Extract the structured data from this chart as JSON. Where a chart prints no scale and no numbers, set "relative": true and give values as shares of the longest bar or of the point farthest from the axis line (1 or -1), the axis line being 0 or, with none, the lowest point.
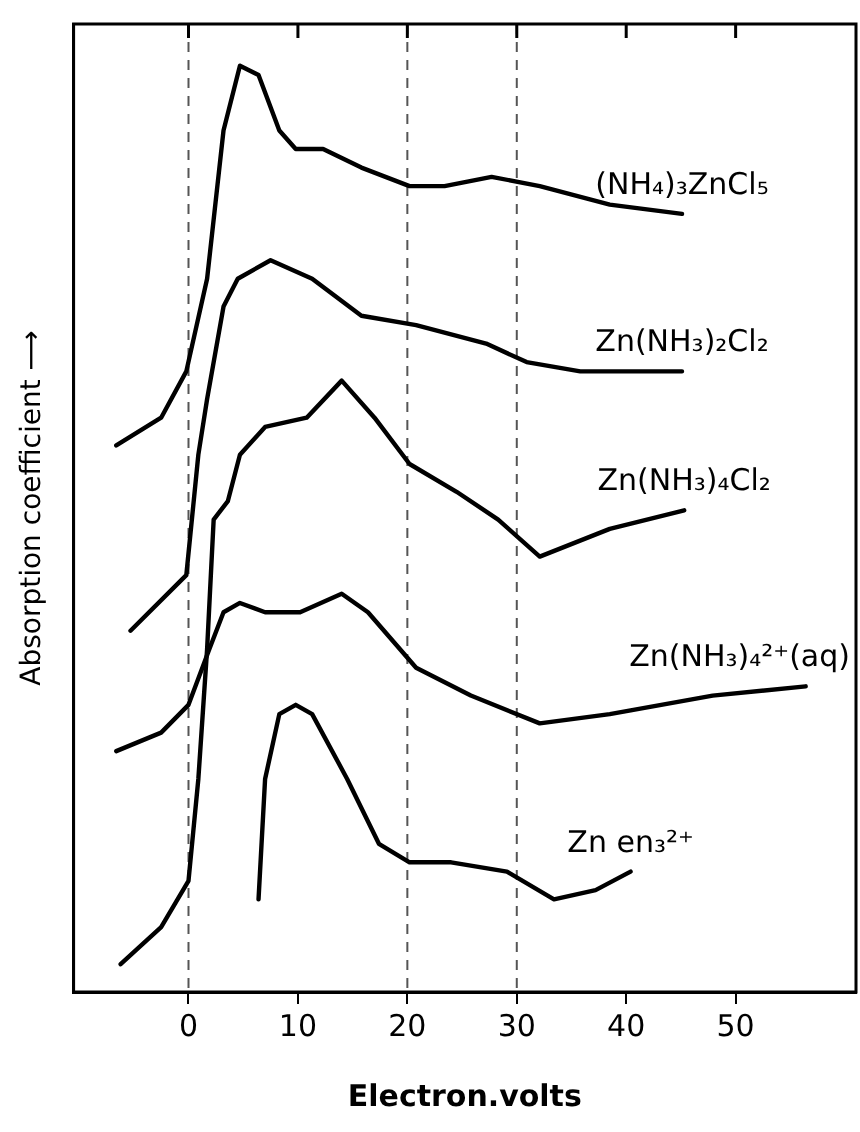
{
  "chart_data": {
    "type": "line",
    "relative": true,
    "xlabel": "Electron.volts",
    "ylabel": "Absorption coefficient ⟶",
    "xlim": [
      -10.5,
      61
    ],
    "xticks": [
      0,
      10,
      20,
      30,
      40,
      50
    ],
    "marker": "none",
    "legend": false,
    "ref_lines": [
      {
        "axis": "x",
        "value": 0,
        "line_style": "dashed",
        "color": "#555555"
      },
      {
        "axis": "x",
        "value": 20,
        "line_style": "dashed",
        "color": "#555555"
      },
      {
        "axis": "x",
        "value": 30,
        "line_style": "dashed",
        "color": "#555555"
      }
    ],
    "series": [
      {
        "name": "(NH₄)₃ZnCl₅",
        "color": "#000000",
        "x": [
          -6.6,
          -2.5,
          -0.2,
          1.7,
          3.2,
          4.7,
          6.4,
          8.3,
          9.8,
          12.3,
          15.8,
          20.2,
          23.4,
          27.7,
          32.1,
          38.5,
          45.1
        ],
        "values": [
          0.59,
          0.62,
          0.67,
          0.77,
          0.93,
          1.0,
          0.99,
          0.93,
          0.91,
          0.91,
          0.89,
          0.87,
          0.87,
          0.88,
          0.87,
          0.85,
          0.84
        ]
      },
      {
        "name": "Zn(NH₃)₂Cl₂",
        "color": "#000000",
        "x": [
          -5.3,
          -0.2,
          0.9,
          1.7,
          3.2,
          4.5,
          7.5,
          11.3,
          15.8,
          20.8,
          27.2,
          30.9,
          35.8,
          45.1
        ],
        "values": [
          0.39,
          0.45,
          0.58,
          0.64,
          0.74,
          0.77,
          0.79,
          0.77,
          0.73,
          0.72,
          0.7,
          0.68,
          0.67,
          0.67
        ]
      },
      {
        "name": "Zn(NH₃)₄Cl₂",
        "color": "#000000",
        "x": [
          -6.2,
          -2.5,
          0,
          0.9,
          1.7,
          2.3,
          3.6,
          4.7,
          7.0,
          10.8,
          14.0,
          17.0,
          20.2,
          24.5,
          28.3,
          32.1,
          38.5,
          45.3
        ],
        "values": [
          0.03,
          0.07,
          0.12,
          0.23,
          0.37,
          0.51,
          0.53,
          0.58,
          0.61,
          0.62,
          0.66,
          0.62,
          0.57,
          0.54,
          0.51,
          0.47,
          0.5,
          0.52
        ]
      },
      {
        "name": "Zn(NH₃)₄²⁺(aq)",
        "color": "#000000",
        "x": [
          -6.6,
          -2.5,
          0,
          1.9,
          3.2,
          4.7,
          7.0,
          10.2,
          14.0,
          16.4,
          20.8,
          25.8,
          32.1,
          38.5,
          47.9,
          56.4
        ],
        "values": [
          0.26,
          0.28,
          0.31,
          0.37,
          0.41,
          0.42,
          0.41,
          0.41,
          0.43,
          0.41,
          0.35,
          0.32,
          0.29,
          0.3,
          0.32,
          0.33
        ]
      },
      {
        "name": "Zn en₃²⁺",
        "color": "#000000",
        "x": [
          6.4,
          7.0,
          8.3,
          9.8,
          11.3,
          14.5,
          17.4,
          20.2,
          24.0,
          29.1,
          33.4,
          37.2,
          40.4
        ],
        "values": [
          0.1,
          0.23,
          0.3,
          0.31,
          0.3,
          0.23,
          0.16,
          0.14,
          0.14,
          0.13,
          0.1,
          0.11,
          0.13
        ]
      }
    ]
  }
}
